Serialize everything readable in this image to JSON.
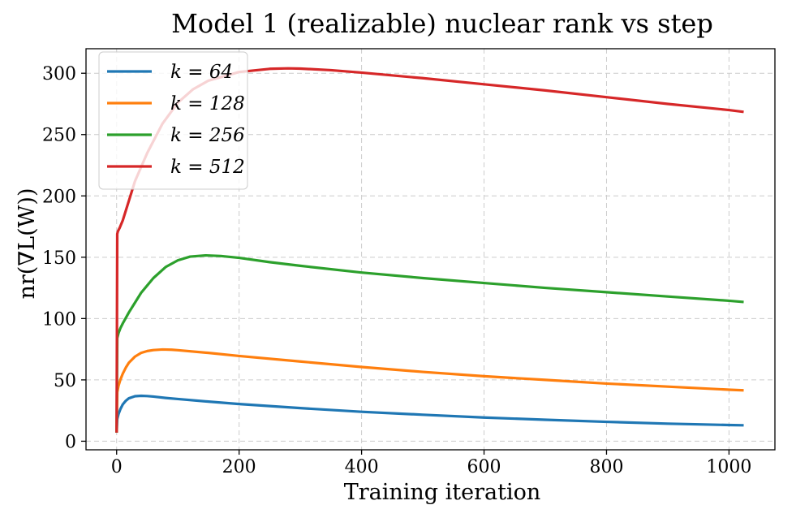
{
  "chart_data": {
    "type": "line",
    "title": "Model 1 (realizable) nuclear rank vs step",
    "xlabel": "Training iteration",
    "ylabel": "nr(∇L(W))",
    "xlim": [
      -50,
      1075
    ],
    "ylim": [
      -7,
      320
    ],
    "xticks": [
      0,
      200,
      400,
      600,
      800,
      1000
    ],
    "yticks": [
      0,
      50,
      100,
      150,
      200,
      250,
      300
    ],
    "grid": true,
    "legend_position": "upper-left",
    "series": [
      {
        "name": "k = 64",
        "color": "#1f77b4",
        "x": [
          0,
          1,
          3,
          6,
          10,
          15,
          20,
          30,
          40,
          50,
          60,
          80,
          100,
          150,
          200,
          300,
          400,
          500,
          600,
          700,
          800,
          900,
          1000,
          1024
        ],
        "y": [
          7,
          18,
          22,
          26,
          30,
          33,
          35,
          36.7,
          37,
          36.8,
          36.4,
          35.3,
          34.4,
          32.3,
          30.3,
          27,
          24,
          21.6,
          19.3,
          17.5,
          15.8,
          14.3,
          13.2,
          13
        ]
      },
      {
        "name": "k = 128",
        "color": "#ff7f0e",
        "x": [
          0,
          1,
          3,
          6,
          10,
          15,
          20,
          30,
          40,
          50,
          60,
          75,
          90,
          100,
          150,
          200,
          300,
          400,
          500,
          600,
          700,
          800,
          900,
          1000,
          1024
        ],
        "y": [
          7,
          40,
          45,
          50,
          55,
          60,
          64,
          69,
          72,
          73.5,
          74.3,
          74.8,
          74.6,
          74.2,
          72,
          69.5,
          65,
          60.5,
          56.5,
          53,
          50,
          47,
          44.5,
          42,
          41.5
        ]
      },
      {
        "name": "k = 256",
        "color": "#2ca02c",
        "x": [
          0,
          1,
          3,
          6,
          10,
          20,
          30,
          40,
          50,
          60,
          80,
          100,
          120,
          145,
          170,
          200,
          250,
          300,
          400,
          500,
          600,
          700,
          800,
          900,
          1000,
          1024
        ],
        "y": [
          7,
          84,
          88,
          92,
          96,
          105,
          113,
          121,
          127,
          133,
          142,
          147.5,
          150.5,
          151.5,
          151,
          149.5,
          146,
          143,
          137.5,
          133,
          129,
          125,
          121.5,
          118,
          114.5,
          113.5
        ]
      },
      {
        "name": "k = 512",
        "color": "#d62728",
        "x": [
          0,
          1,
          2,
          5,
          10,
          20,
          30,
          50,
          75,
          100,
          125,
          150,
          200,
          250,
          280,
          300,
          350,
          400,
          500,
          600,
          700,
          800,
          900,
          1000,
          1024
        ],
        "y": [
          7,
          169,
          171,
          174,
          180,
          196,
          212,
          235,
          259,
          276,
          287,
          294,
          301,
          303.6,
          304,
          303.8,
          302.5,
          300.5,
          296,
          291,
          286,
          280.5,
          275,
          270,
          268.5
        ]
      }
    ]
  }
}
